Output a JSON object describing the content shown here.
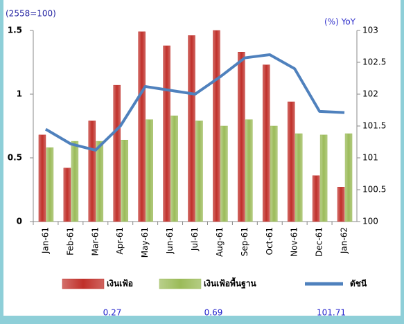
{
  "chart_data": {
    "type": "bar",
    "ylabel": "(2558=100)",
    "y2label": "(%) YoY",
    "categories": [
      "Jan-61",
      "Feb-61",
      "Mar-61",
      "Apr-61",
      "May-61",
      "Jun-61",
      "Jul-61",
      "Aug-61",
      "Sep-61",
      "Oct-61",
      "Nov-61",
      "Dec-61",
      "Jan-62"
    ],
    "series": [
      {
        "name": "เงินเฟ้อ",
        "type": "bar",
        "color": "#c0302a",
        "values": [
          0.68,
          0.42,
          0.79,
          1.07,
          1.49,
          1.38,
          1.46,
          1.5,
          1.33,
          1.23,
          0.94,
          0.36,
          0.27
        ]
      },
      {
        "name": "เงินเฟ้อพื้นฐาน",
        "type": "bar",
        "color": "#9bbb59",
        "values": [
          0.58,
          0.63,
          0.63,
          0.64,
          0.8,
          0.83,
          0.79,
          0.75,
          0.8,
          0.75,
          0.69,
          0.68,
          0.69
        ]
      },
      {
        "name": "ดัชนี",
        "type": "line",
        "axis": "y2",
        "color": "#4f81bd",
        "values": [
          101.45,
          101.22,
          101.12,
          101.5,
          102.12,
          102.06,
          102.0,
          102.27,
          102.57,
          102.62,
          102.4,
          101.73,
          101.71
        ]
      }
    ],
    "ylim": [
      0,
      1.5
    ],
    "yticks": [
      0,
      0.5,
      1,
      1.5
    ],
    "y2lim": [
      100,
      103
    ],
    "y2ticks": [
      100,
      100.5,
      101,
      101.5,
      102,
      102.5,
      103
    ],
    "latest_values": [
      0.27,
      0.69,
      101.71
    ],
    "grid": false
  }
}
